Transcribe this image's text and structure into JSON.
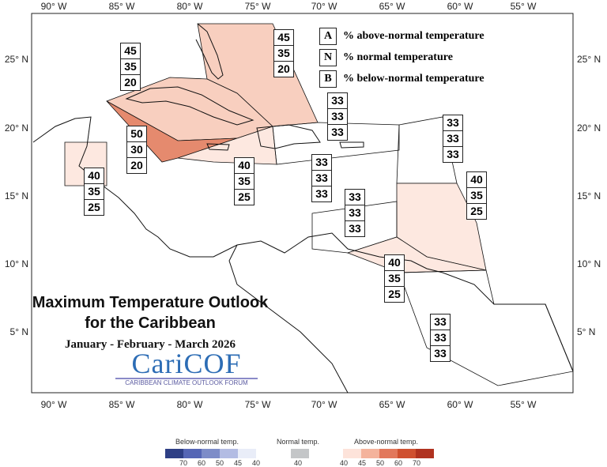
{
  "title": {
    "line1": "Maximum Temperature Outlook",
    "line2": "for the Caribbean",
    "period": "January - February - March 2026"
  },
  "logo": {
    "name": "CariCOF",
    "tagline": "CARIBBEAN CLIMATE OUTLOOK FORUM"
  },
  "axes": {
    "lon_ticks": [
      "90° W",
      "85° W",
      "80° W",
      "75° W",
      "70° W",
      "65° W",
      "60° W",
      "55° W"
    ],
    "lat_ticks": [
      "25° N",
      "20° N",
      "15° N",
      "10° N",
      "5° N"
    ]
  },
  "key": [
    {
      "letter": "A",
      "text": "% above-normal temperature"
    },
    {
      "letter": "N",
      "text": "% normal temperature"
    },
    {
      "letter": "B",
      "text": "% below-normal temperature"
    }
  ],
  "regions": [
    {
      "name": "Gulf/NW Cuba",
      "values": [
        "45",
        "35",
        "20"
      ],
      "color": "#f8cfbf"
    },
    {
      "name": "Bahamas",
      "values": [
        "45",
        "35",
        "20"
      ],
      "color": "#f8cfbf"
    },
    {
      "name": "Turks and Caicos",
      "values": [
        "33",
        "33",
        "33"
      ],
      "color": "#ffffff"
    },
    {
      "name": "Cayman",
      "values": [
        "50",
        "30",
        "20"
      ],
      "color": "#e58a6e"
    },
    {
      "name": "Northern Leewards",
      "values": [
        "33",
        "33",
        "33"
      ],
      "color": "#ffffff"
    },
    {
      "name": "Jamaica",
      "values": [
        "40",
        "35",
        "25"
      ],
      "color": "#fde8e0"
    },
    {
      "name": "Hispaniola/Puerto Rico",
      "values": [
        "33",
        "33",
        "33"
      ],
      "color": "#ffffff"
    },
    {
      "name": "Belize",
      "values": [
        "40",
        "35",
        "25"
      ],
      "color": "#fde8e0"
    },
    {
      "name": "Eastern Caribbean",
      "values": [
        "40",
        "35",
        "25"
      ],
      "color": "#fde8e0"
    },
    {
      "name": "Caribbean Sea",
      "values": [
        "33",
        "33",
        "33"
      ],
      "color": "#ffffff"
    },
    {
      "name": "Trinidad",
      "values": [
        "40",
        "35",
        "25"
      ],
      "color": "#fde8e0"
    },
    {
      "name": "Guianas",
      "values": [
        "33",
        "33",
        "33"
      ],
      "color": "#ffffff"
    }
  ],
  "legend": {
    "below": {
      "label": "Below-normal temp.",
      "ticks": [
        "70",
        "60",
        "50",
        "45",
        "40"
      ],
      "colors": [
        "#2e3f85",
        "#5566b5",
        "#7d8cc8",
        "#b3bce3",
        "#e9edf8"
      ]
    },
    "normal": {
      "label": "Normal temp.",
      "ticks": [
        "40"
      ],
      "color": "#c4c6c8"
    },
    "above": {
      "label": "Above-normal temp.",
      "ticks": [
        "40",
        "45",
        "50",
        "60",
        "70"
      ],
      "colors": [
        "#fde3da",
        "#f4b39c",
        "#e2785c",
        "#cf5030",
        "#b03220"
      ]
    }
  }
}
